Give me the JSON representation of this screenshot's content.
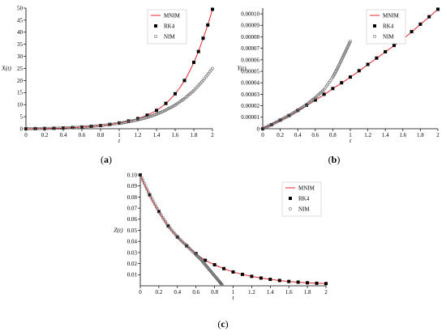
{
  "figure": {
    "captions": [
      "(a)",
      "(b)",
      "(c)"
    ]
  },
  "chart_data": [
    {
      "type": "line",
      "panel": "a",
      "caption": "(a)",
      "xlabel": "t",
      "ylabel": "X(t)",
      "xlim": [
        0,
        2
      ],
      "ylim": [
        0,
        50
      ],
      "xticks": [
        "0",
        "0.2",
        "0.4",
        "0.6",
        "0.8",
        "1",
        "1.2",
        "1.4",
        "1.6",
        "1.8",
        "2"
      ],
      "yticks": [
        "0",
        "5",
        "10",
        "15",
        "20",
        "25",
        "30",
        "35",
        "40",
        "45",
        "50"
      ],
      "legend": [
        "MNIM",
        "RK4",
        "NIM"
      ],
      "legend_position": "top-left",
      "series": [
        {
          "name": "MNIM",
          "style": "line",
          "color": "#e8202a",
          "x": [
            0,
            0.2,
            0.4,
            0.6,
            0.8,
            1.0,
            1.2,
            1.4,
            1.5,
            1.6,
            1.7,
            1.8,
            1.9,
            2.0
          ],
          "y": [
            0,
            0.1,
            0.3,
            0.7,
            1.3,
            2.4,
            4.2,
            7.6,
            10.5,
            14.5,
            20.0,
            27.5,
            37.5,
            49.5
          ]
        },
        {
          "name": "RK4",
          "style": "square",
          "color": "#000000",
          "x": [
            0,
            0.1,
            0.2,
            0.3,
            0.4,
            0.5,
            0.6,
            0.7,
            0.8,
            0.9,
            1.0,
            1.1,
            1.2,
            1.3,
            1.4,
            1.5,
            1.6,
            1.7,
            1.8,
            1.85,
            1.9,
            1.95,
            2.0
          ],
          "y": [
            0,
            0.05,
            0.1,
            0.2,
            0.3,
            0.5,
            0.7,
            1.0,
            1.3,
            1.8,
            2.4,
            3.2,
            4.2,
            5.6,
            7.6,
            10.5,
            14.5,
            20.0,
            27.5,
            32.0,
            37.5,
            43.0,
            49.5
          ]
        },
        {
          "name": "NIM",
          "style": "circle",
          "color": "#666666",
          "x": [
            0,
            0.2,
            0.4,
            0.6,
            0.8,
            1.0,
            1.1,
            1.2,
            1.3,
            1.4,
            1.5,
            1.6,
            1.7,
            1.8,
            1.9,
            2.0
          ],
          "y": [
            0,
            0.1,
            0.3,
            0.7,
            1.3,
            2.2,
            2.9,
            3.7,
            4.7,
            6.0,
            7.7,
            9.8,
            12.5,
            15.8,
            20.0,
            25.0
          ]
        }
      ]
    },
    {
      "type": "line",
      "panel": "b",
      "caption": "(b)",
      "xlabel": "t",
      "ylabel": "Y(t)",
      "xlim": [
        0,
        2
      ],
      "ylim": [
        0,
        0.000105
      ],
      "xticks": [
        "0",
        "0.2",
        "0.4",
        "0.6",
        "0.8",
        "1",
        "1.2",
        "1.4",
        "1.6",
        "1.8",
        "2"
      ],
      "yticks": [
        "0",
        "0.00001",
        "0.00002",
        "0.00003",
        "0.00004",
        "0.00005",
        "0.00006",
        "0.00007",
        "0.00008",
        "0.00009",
        "0.00010"
      ],
      "legend": [
        "MNIM",
        "RK4",
        "NIM"
      ],
      "legend_position": "top-right",
      "series": [
        {
          "name": "MNIM",
          "style": "line",
          "color": "#e8202a",
          "x": [
            0,
            0.2,
            0.4,
            0.6,
            0.8,
            1.0,
            1.2,
            1.4,
            1.6,
            1.8,
            2.0
          ],
          "y": [
            0,
            7.5e-06,
            1.6e-05,
            2.5e-05,
            3.5e-05,
            4.5e-05,
            5.6e-05,
            6.7e-05,
            7.8e-05,
            9.1e-05,
            0.000104
          ]
        },
        {
          "name": "RK4",
          "style": "square",
          "color": "#000000",
          "x": [
            0,
            0.1,
            0.2,
            0.3,
            0.4,
            0.5,
            0.6,
            0.7,
            0.8,
            0.9,
            1.0,
            1.1,
            1.2,
            1.3,
            1.4,
            1.5,
            1.6,
            1.7,
            1.8,
            1.9,
            2.0
          ],
          "y": [
            0,
            3.5e-06,
            7.5e-06,
            1.15e-05,
            1.6e-05,
            2.05e-05,
            2.5e-05,
            3e-05,
            3.5e-05,
            4e-05,
            4.5e-05,
            5.05e-05,
            5.6e-05,
            6.15e-05,
            6.7e-05,
            7.25e-05,
            7.8e-05,
            8.45e-05,
            9.1e-05,
            9.75e-05,
            0.000104
          ]
        },
        {
          "name": "NIM",
          "style": "circle",
          "color": "#666666",
          "x": [
            0,
            0.1,
            0.2,
            0.3,
            0.4,
            0.5,
            0.6,
            0.7,
            0.8,
            0.85,
            0.9,
            0.95,
            1.0
          ],
          "y": [
            0,
            3.5e-06,
            7.5e-06,
            1.15e-05,
            1.6e-05,
            2.1e-05,
            2.7e-05,
            3.4e-05,
            4.5e-05,
            5.2e-05,
            6e-05,
            6.8e-05,
            7.6e-05
          ]
        }
      ]
    },
    {
      "type": "line",
      "panel": "c",
      "caption": "(c)",
      "xlabel": "t",
      "ylabel": "Z(t)",
      "xlim": [
        0,
        2
      ],
      "ylim": [
        0,
        0.1
      ],
      "xticks": [
        "0",
        "0.2",
        "0.4",
        "0.6",
        "0.8",
        "1",
        "1.2",
        "1.4",
        "1.6",
        "1.8",
        "2"
      ],
      "yticks": [
        "0.01",
        "0.02",
        "0.03",
        "0.04",
        "0.05",
        "0.06",
        "0.07",
        "0.08",
        "0.09",
        "0.10"
      ],
      "legend": [
        "MNIM",
        "RK4",
        "NIM"
      ],
      "legend_position": "top-right",
      "series": [
        {
          "name": "MNIM",
          "style": "line",
          "color": "#e8202a",
          "x": [
            0,
            0.1,
            0.2,
            0.3,
            0.4,
            0.5,
            0.6,
            0.7,
            0.8,
            0.9,
            1.0,
            1.2,
            1.4,
            1.6,
            1.8,
            2.0
          ],
          "y": [
            0.1,
            0.082,
            0.067,
            0.054,
            0.044,
            0.036,
            0.029,
            0.023,
            0.019,
            0.0155,
            0.0125,
            0.0085,
            0.0058,
            0.0039,
            0.0027,
            0.002
          ]
        },
        {
          "name": "RK4",
          "style": "square",
          "color": "#000000",
          "x": [
            0,
            0.1,
            0.2,
            0.3,
            0.4,
            0.5,
            0.6,
            0.7,
            0.8,
            0.9,
            1.0,
            1.1,
            1.2,
            1.3,
            1.4,
            1.5,
            1.6,
            1.7,
            1.8,
            1.9,
            2.0
          ],
          "y": [
            0.1,
            0.082,
            0.067,
            0.054,
            0.044,
            0.036,
            0.029,
            0.023,
            0.019,
            0.0155,
            0.0125,
            0.0103,
            0.0085,
            0.007,
            0.0058,
            0.0048,
            0.0039,
            0.0033,
            0.0027,
            0.0023,
            0.002
          ]
        },
        {
          "name": "NIM",
          "style": "circle",
          "color": "#666666",
          "x": [
            0,
            0.1,
            0.2,
            0.3,
            0.4,
            0.5,
            0.6,
            0.65,
            0.7,
            0.75,
            0.8,
            0.85,
            0.88
          ],
          "y": [
            0.1,
            0.082,
            0.067,
            0.054,
            0.044,
            0.036,
            0.028,
            0.024,
            0.019,
            0.014,
            0.009,
            0.004,
            0.001
          ]
        }
      ]
    }
  ]
}
